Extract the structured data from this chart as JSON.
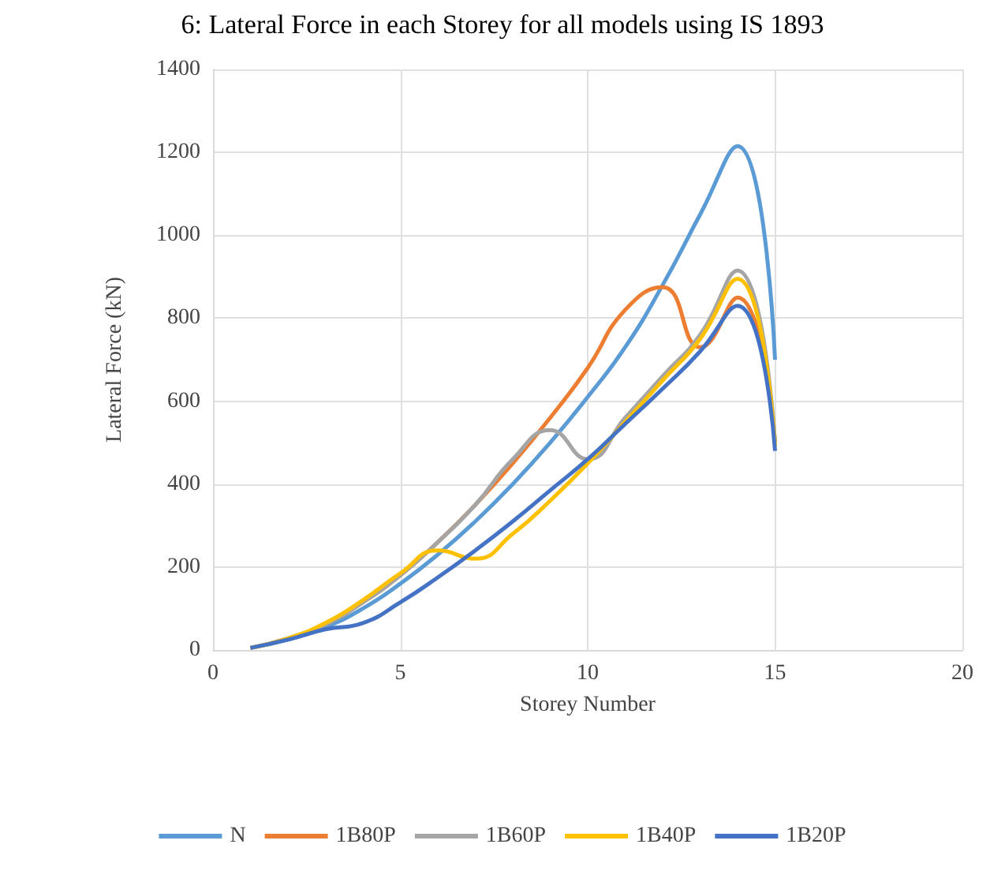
{
  "chart_data": {
    "type": "line",
    "title": "6: Lateral Force in each Storey for all models using IS 1893",
    "xlabel": "Storey Number",
    "ylabel": "Lateral Force (kN)",
    "x": [
      1,
      2,
      3,
      4,
      5,
      6,
      7,
      8,
      9,
      10,
      11,
      12,
      13,
      14,
      15
    ],
    "series": [
      {
        "name": "N",
        "color": "#5b9bd5",
        "values": [
          5,
          25,
          55,
          100,
          160,
          230,
          310,
          400,
          500,
          610,
          730,
          880,
          1050,
          1215,
          700
        ]
      },
      {
        "name": "1B80P",
        "color": "#ed7d31",
        "values": [
          5,
          28,
          62,
          115,
          180,
          260,
          350,
          450,
          560,
          680,
          820,
          875,
          730,
          850,
          500
        ]
      },
      {
        "name": "1B60P",
        "color": "#a5a5a5",
        "values": [
          5,
          28,
          62,
          115,
          180,
          260,
          350,
          460,
          530,
          460,
          560,
          660,
          760,
          915,
          500
        ]
      },
      {
        "name": "1B40P",
        "color": "#ffc000",
        "values": [
          5,
          28,
          65,
          120,
          185,
          240,
          220,
          280,
          360,
          450,
          550,
          650,
          750,
          895,
          490
        ]
      },
      {
        "name": "1B20P",
        "color": "#4472c4",
        "values": [
          5,
          25,
          50,
          65,
          115,
          175,
          240,
          310,
          385,
          460,
          545,
          630,
          720,
          830,
          480
        ]
      }
    ],
    "xlim": [
      0,
      20
    ],
    "xticks": [
      0,
      5,
      10,
      15,
      20
    ],
    "ylim": [
      0,
      1400
    ],
    "yticks": [
      0,
      200,
      400,
      600,
      800,
      1000,
      1200,
      1400
    ],
    "grid": true,
    "legend": "bottom",
    "marker": "none",
    "line_style": "solid"
  }
}
